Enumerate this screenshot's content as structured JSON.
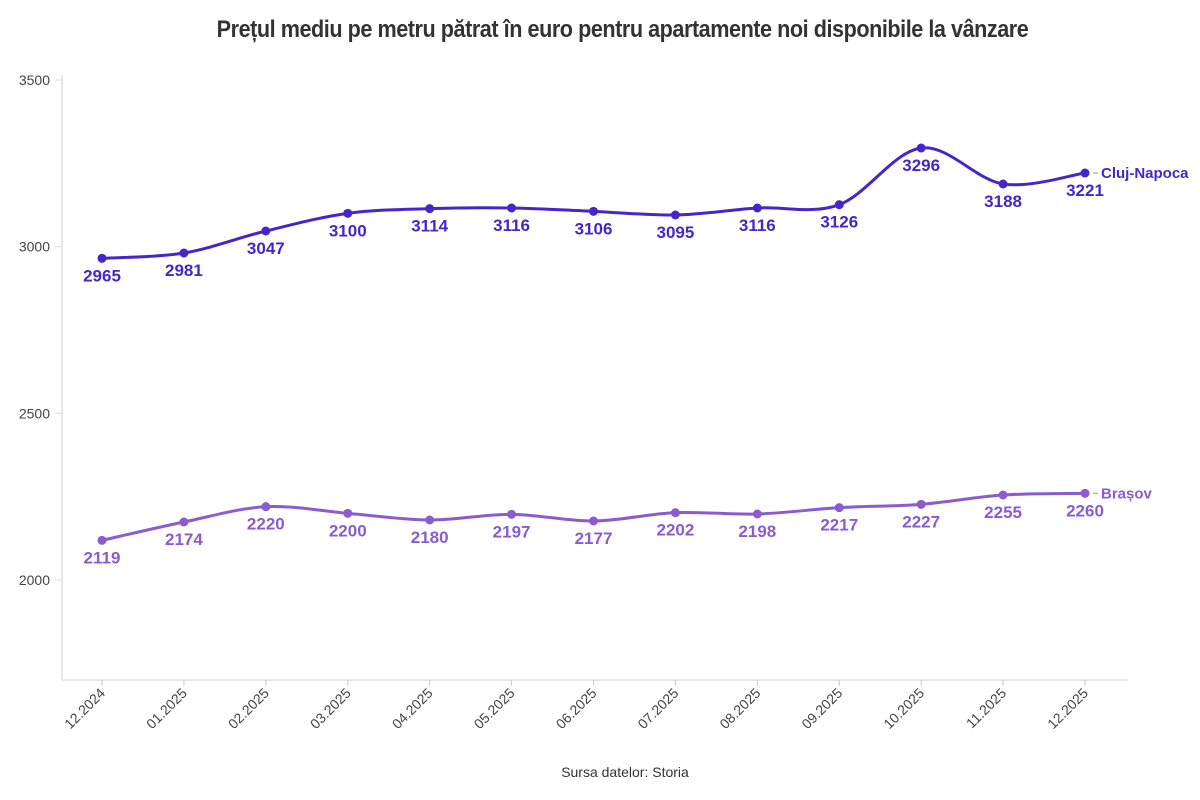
{
  "chart_data": {
    "type": "line",
    "title": "Prețul mediu pe metru pătrat în euro pentru apartamente noi disponibile la vânzare",
    "source": "Sursa datelor: Storia",
    "categories": [
      "12.2024",
      "01.2025",
      "02.2025",
      "03.2025",
      "04.2025",
      "05.2025",
      "06.2025",
      "07.2025",
      "08.2025",
      "09.2025",
      "10.2025",
      "11.2025",
      "12.2025"
    ],
    "yticks": [
      2000,
      2500,
      3000,
      3500
    ],
    "ylim": [
      1700,
      3500
    ],
    "grid": false,
    "legend": "direct labels at line ends",
    "series": [
      {
        "name": "Cluj-Napoca",
        "color": "#4527c9",
        "values": [
          2965,
          2981,
          3047,
          3100,
          3114,
          3116,
          3106,
          3095,
          3116,
          3126,
          3296,
          3188,
          3221
        ]
      },
      {
        "name": "Brașov",
        "color": "#8a5cd0",
        "values": [
          2119,
          2174,
          2220,
          2200,
          2180,
          2197,
          2177,
          2202,
          2198,
          2217,
          2227,
          2255,
          2260
        ]
      }
    ]
  }
}
